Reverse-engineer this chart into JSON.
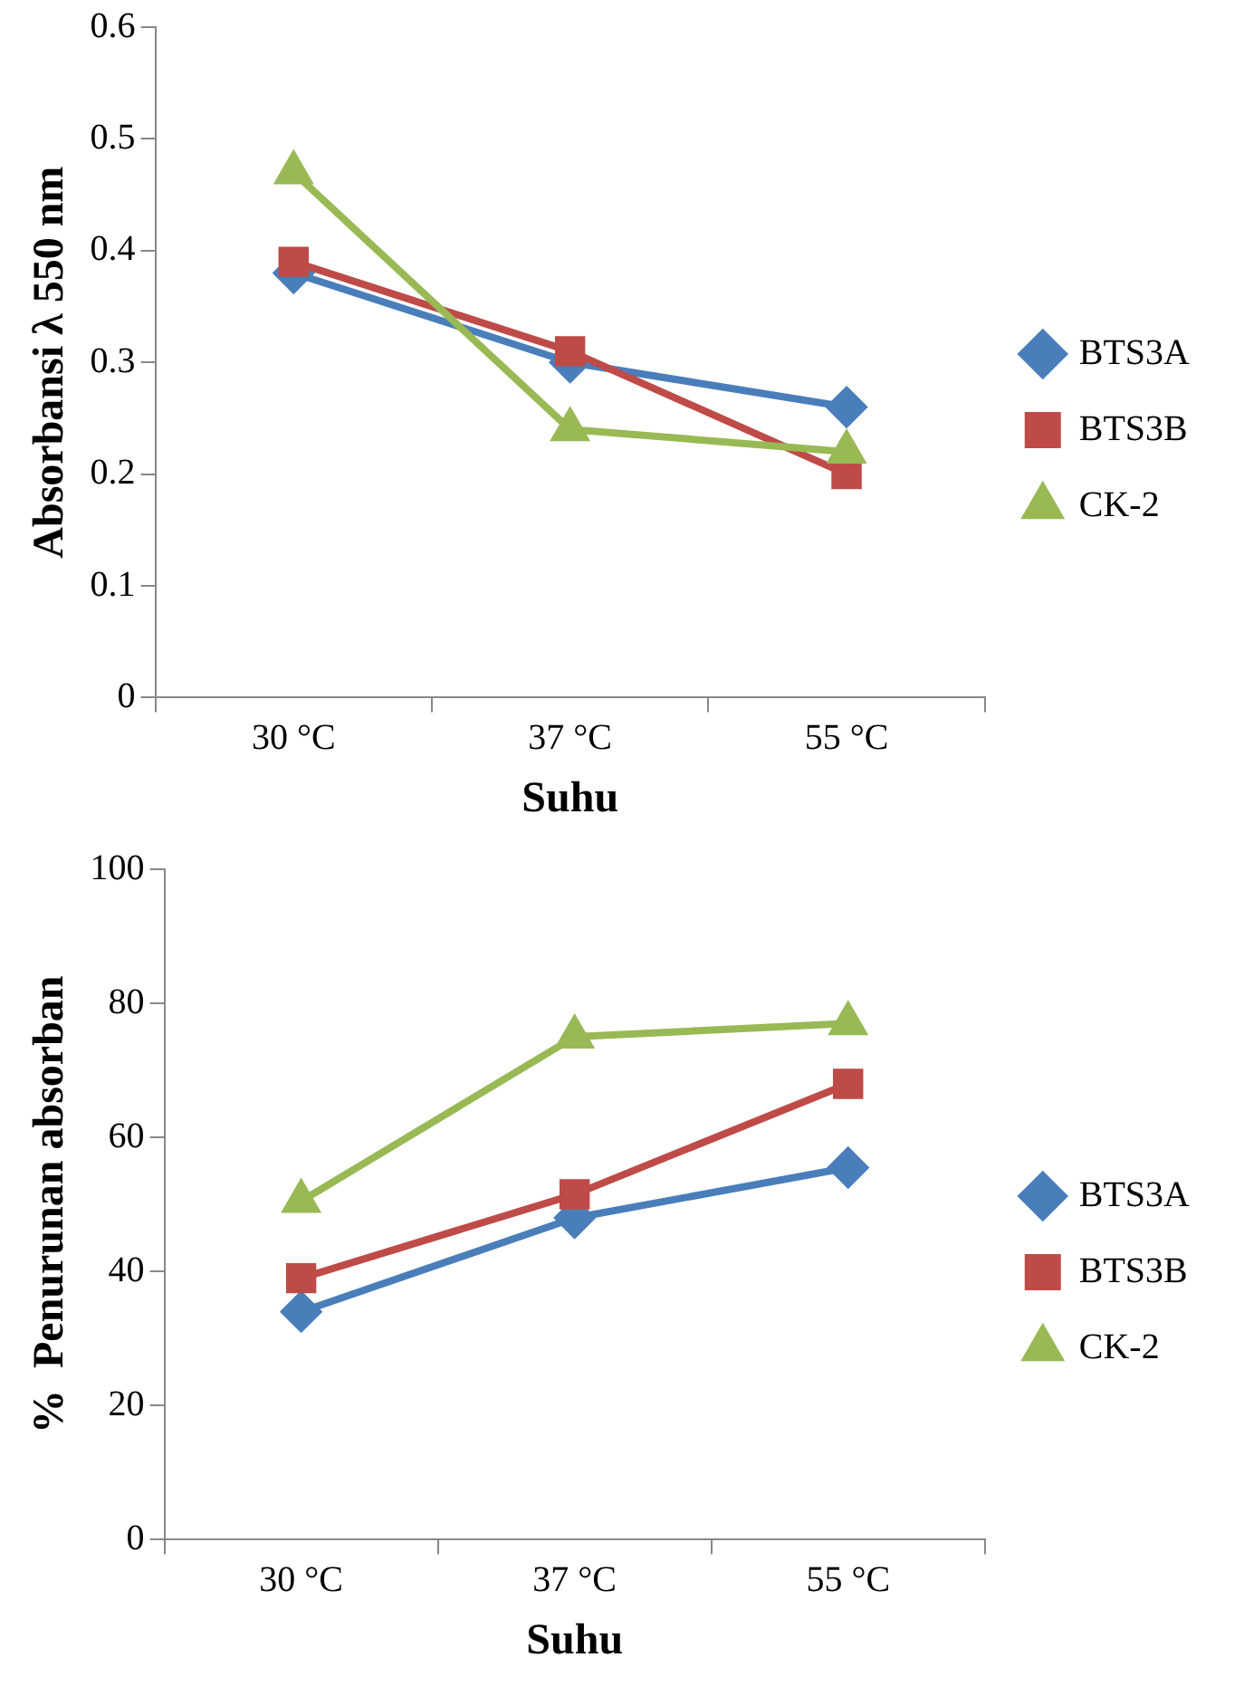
{
  "chart_data": [
    {
      "type": "line",
      "xlabel": "Suhu",
      "ylabel": "Absorbansi λ 550 nm",
      "categories": [
        "30 °C",
        "37 °C",
        "55 °C"
      ],
      "ylim": [
        0,
        0.6
      ],
      "yticks": [
        0,
        0.1,
        0.2,
        0.3,
        0.4,
        0.5,
        0.6
      ],
      "grid": false,
      "legend": "right",
      "series": [
        {
          "name": "BTS3A",
          "color": "#4a7ebb",
          "marker": "diamond",
          "values": [
            0.38,
            0.3,
            0.26
          ]
        },
        {
          "name": "BTS3B",
          "color": "#be4b48",
          "marker": "square",
          "values": [
            0.39,
            0.31,
            0.2
          ]
        },
        {
          "name": "CK-2",
          "color": "#98b954",
          "marker": "triangle",
          "values": [
            0.47,
            0.24,
            0.22
          ]
        }
      ]
    },
    {
      "type": "line",
      "xlabel": "Suhu",
      "ylabel": "%  Penurunan absorban",
      "categories": [
        "30 °C",
        "37 °C",
        "55 °C"
      ],
      "ylim": [
        0,
        100
      ],
      "yticks": [
        0,
        20,
        40,
        60,
        80,
        100
      ],
      "grid": false,
      "legend": "right",
      "series": [
        {
          "name": "BTS3A",
          "color": "#4a7ebb",
          "marker": "diamond",
          "values": [
            34,
            48,
            55.5
          ]
        },
        {
          "name": "BTS3B",
          "color": "#be4b48",
          "marker": "square",
          "values": [
            39,
            51.5,
            68
          ]
        },
        {
          "name": "CK-2",
          "color": "#98b954",
          "marker": "triangle",
          "values": [
            50.5,
            75,
            77
          ]
        }
      ]
    }
  ]
}
